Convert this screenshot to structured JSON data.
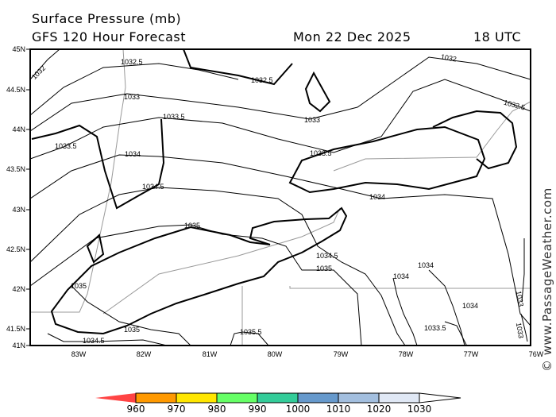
{
  "header": {
    "title": "Surface Pressure (mb)",
    "subtitle": "GFS 120 Hour Forecast",
    "date": "Mon 22 Dec 2025",
    "time": "18 UTC"
  },
  "watermark": "© www.PassageWeather.com",
  "axes": {
    "lat_labels": [
      "45N",
      "44.5N",
      "44N",
      "43.5N",
      "43N",
      "42.5N",
      "42N",
      "41.5N",
      "41N"
    ],
    "lon_labels": [
      "83W",
      "82W",
      "81W",
      "80W",
      "79W",
      "78W",
      "77W",
      "76W"
    ]
  },
  "contour_labels": [
    "1032",
    "1032",
    "1032.5",
    "1032.5",
    "1032.5",
    "1033",
    "1033",
    "1033",
    "1033",
    "1033.5",
    "1033.5",
    "1033.5",
    "1033.5",
    "1034",
    "1034",
    "1034",
    "1034",
    "1034",
    "1034.5",
    "1034.5",
    "1034.5",
    "1035",
    "1035",
    "1035",
    "1035",
    "1035.5"
  ],
  "colorbar": {
    "labels": [
      "960",
      "970",
      "980",
      "990",
      "1000",
      "1010",
      "1020",
      "1030"
    ],
    "colors": [
      "#ff4444",
      "#ff9900",
      "#ffe600",
      "#66ff66",
      "#33cc99",
      "#6699cc",
      "#a3bfdf",
      "#e0e8f5",
      "#ffffff"
    ]
  }
}
